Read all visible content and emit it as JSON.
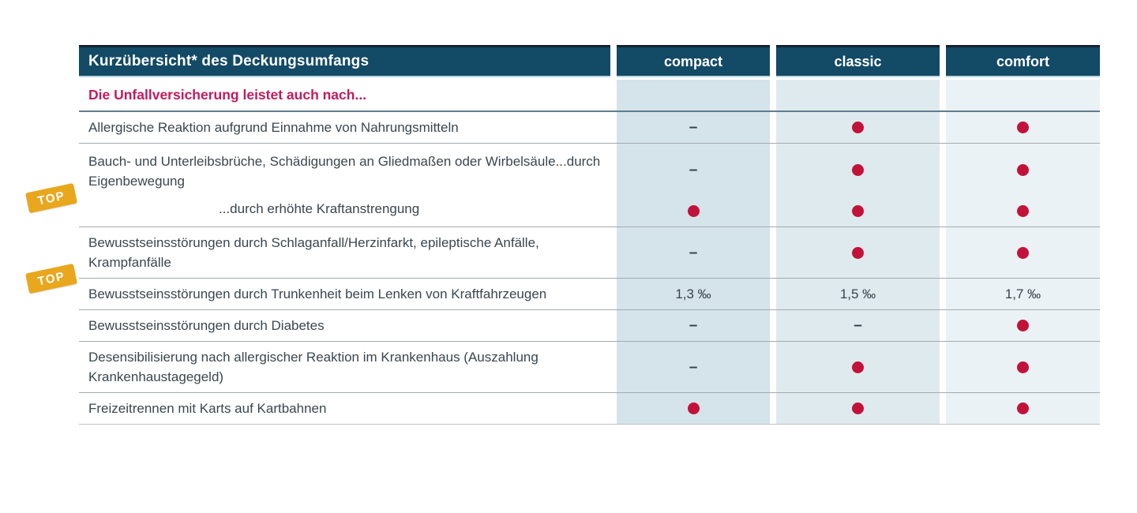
{
  "table": {
    "title": "Kurzübersicht* des Deckungsumfangs",
    "columns": [
      "compact",
      "classic",
      "comfort"
    ],
    "subtitle": "Die Unfallversicherung leistet auch nach...",
    "badge_label": "TOP",
    "dash_symbol": "–",
    "rows": [
      {
        "label": "Allergische Reaktion aufgrund Einnahme von Nahrungsmitteln",
        "values": [
          "dash",
          "dot",
          "dot"
        ],
        "top_badge": false
      },
      {
        "label": "Bauch- und Unterleibsbrüche, Schädigungen an Gliedmaßen oder Wirbelsäule...durch Eigenbewegung",
        "sublabel": "...durch erhöhte Kraftanstrengung",
        "values": [
          "dash",
          "dot",
          "dot"
        ],
        "subvalues": [
          "dot",
          "dot",
          "dot"
        ],
        "top_badge": true
      },
      {
        "label": "Bewusstseinsstörungen durch Schlaganfall/Herzinfarkt, epileptische Anfälle, Krampfanfälle",
        "values": [
          "dash",
          "dot",
          "dot"
        ],
        "top_badge": true
      },
      {
        "label": "Bewusstseinsstörungen durch Trunkenheit beim Lenken von Kraftfahrzeugen",
        "values": [
          "1,3 ‰",
          "1,5 ‰",
          "1,7 ‰"
        ],
        "top_badge": false
      },
      {
        "label": "Bewusstseinsstörungen durch Diabetes",
        "values": [
          "dash",
          "dash",
          "dot"
        ],
        "top_badge": false
      },
      {
        "label": "Desensibilisierung nach allergischer Reaktion im Krankenhaus (Auszahlung Krankenhaustagegeld)",
        "values": [
          "dash",
          "dot",
          "dot"
        ],
        "top_badge": false
      },
      {
        "label": "Freizeitrennen mit Karts auf Kartbahnen",
        "values": [
          "dot",
          "dot",
          "dot"
        ],
        "top_badge": false
      }
    ]
  },
  "colors": {
    "header_bg": "#134a66",
    "highlight_pink": "#c51a5b",
    "dot_red": "#c3123a",
    "badge_orange": "#e9a71d",
    "col_compact_bg": "#d5e3ea",
    "col_classic_bg": "#dfeaee",
    "col_comfort_bg": "#ebf2f5"
  }
}
